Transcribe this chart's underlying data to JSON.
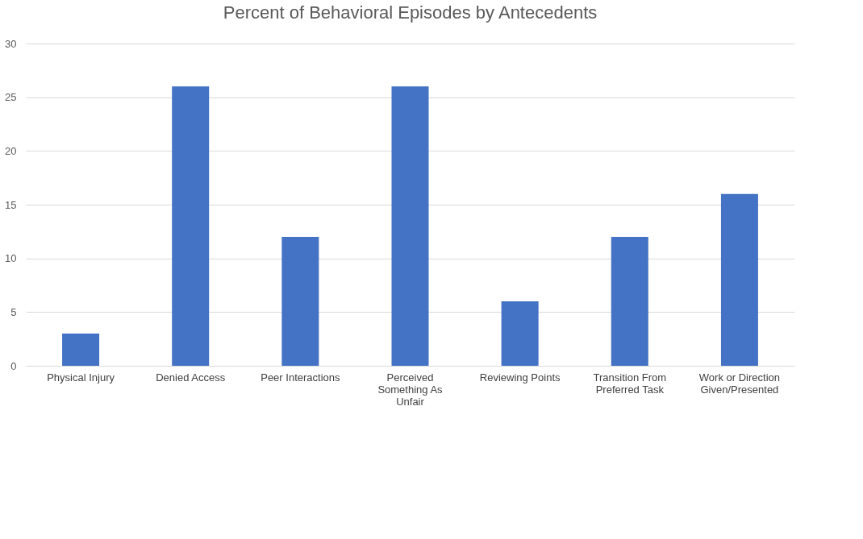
{
  "chart_data": {
    "type": "bar",
    "title": "Percent of Behavioral Episodes by Antecedents",
    "categories": [
      "Physical Injury",
      "Denied Access",
      "Peer Interactions",
      "Perceived Something As Unfair",
      "Reviewing Points",
      "Transition From Preferred Task",
      "Work or Direction Given/Presented"
    ],
    "values": [
      3,
      26,
      12,
      26,
      6,
      12,
      16
    ],
    "color": "#4472c4",
    "ylim": [
      0,
      30
    ],
    "yticks": [
      0,
      5,
      10,
      15,
      20,
      25,
      30
    ],
    "grid": "y"
  }
}
